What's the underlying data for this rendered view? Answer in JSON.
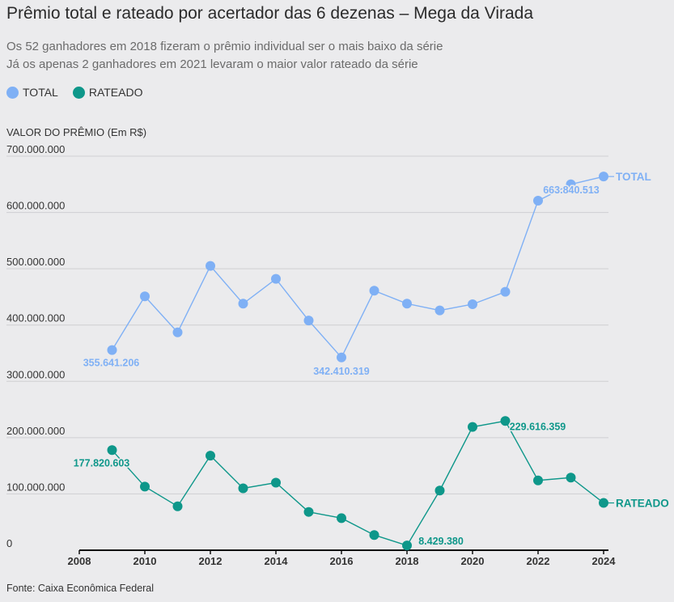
{
  "chart_data": {
    "type": "line",
    "title": "Prêmio total e rateado por acertador das 6 dezenas – Mega da Virada",
    "subtitle_lines": [
      "Os 52 ganhadores em 2018 fizeram o prêmio individual ser o mais baixo da série",
      "Já os apenas 2 ganhadores em 2021 levaram o maior valor rateado da série"
    ],
    "ylabel": "VALOR DO PRÊMIO (Em R$)",
    "xlim": [
      2008,
      2024
    ],
    "ylim": [
      0,
      700000000
    ],
    "x_ticks": [
      "2008",
      "2010",
      "2012",
      "2014",
      "2016",
      "2018",
      "2020",
      "2022",
      "2024"
    ],
    "y_ticks": [
      "0",
      "100.000.000",
      "200.000.000",
      "300.000.000",
      "400.000.000",
      "500.000.000",
      "600.000.000",
      "700.000.000"
    ],
    "x": [
      2009,
      2010,
      2011,
      2012,
      2013,
      2014,
      2015,
      2016,
      2017,
      2018,
      2019,
      2020,
      2021,
      2022,
      2023,
      2024
    ],
    "series": [
      {
        "name": "TOTAL",
        "color": "#7fb0f5",
        "values": [
          355641206,
          451000000,
          387000000,
          505000000,
          438000000,
          482000000,
          408000000,
          342410319,
          461000000,
          438000000,
          426000000,
          437000000,
          459000000,
          621000000,
          650000000,
          663840513
        ]
      },
      {
        "name": "RATEADO",
        "color": "#0e978a",
        "values": [
          177820603,
          113000000,
          78000000,
          168000000,
          110000000,
          120000000,
          68000000,
          57000000,
          27000000,
          8429380,
          106000000,
          219000000,
          229616359,
          124000000,
          129000000,
          84000000
        ]
      }
    ],
    "annotations": [
      {
        "series": 0,
        "index": 0,
        "text": "355.641.206"
      },
      {
        "series": 0,
        "index": 7,
        "text": "342.410.319"
      },
      {
        "series": 0,
        "index": 15,
        "text": "663.840.513"
      },
      {
        "series": 1,
        "index": 0,
        "text": "177.820.603"
      },
      {
        "series": 1,
        "index": 9,
        "text": "8.429.380"
      },
      {
        "series": 1,
        "index": 12,
        "text": "229.616.359"
      }
    ],
    "end_labels": [
      "TOTAL",
      "RATEADO"
    ],
    "legend": [
      "TOTAL",
      "RATEADO"
    ]
  },
  "source": "Fonte: Caixa Econômica Federal"
}
